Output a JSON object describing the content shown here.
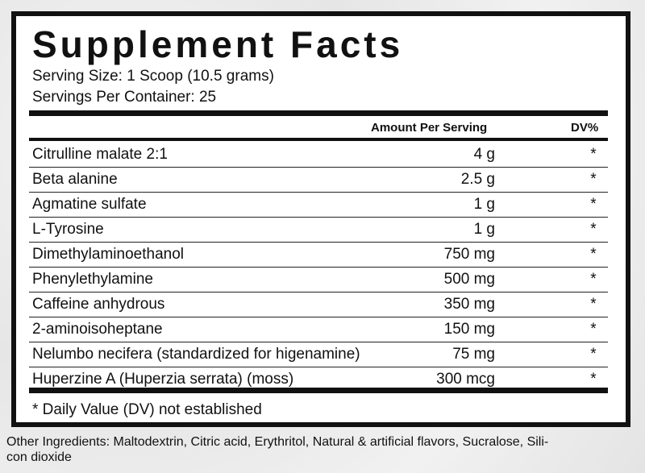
{
  "header": {
    "title": "Supplement Facts"
  },
  "serving": {
    "size": "Serving Size: 1 Scoop (10.5 grams)",
    "per_container": "Servings Per Container: 25"
  },
  "table": {
    "columns": [
      "Amount Per Serving",
      "DV%"
    ],
    "rows": [
      [
        "Citrulline malate 2:1",
        "4 g",
        "*"
      ],
      [
        "Beta alanine",
        "2.5 g",
        "*"
      ],
      [
        "Agmatine sulfate",
        "1 g",
        "*"
      ],
      [
        "L-Tyrosine",
        "1 g",
        "*"
      ],
      [
        "Dimethylaminoethanol",
        "750 mg",
        "*"
      ],
      [
        "Phenylethylamine",
        "500 mg",
        "*"
      ],
      [
        "Caffeine anhydrous",
        "350 mg",
        "*"
      ],
      [
        "2-aminoisoheptane",
        "150 mg",
        "*"
      ],
      [
        "Nelumbo necifera (standardized for higenamine)",
        "75 mg",
        "*"
      ],
      [
        "Huperzine A (Huperzia serrata) (moss)",
        "300 mcg",
        "*"
      ]
    ]
  },
  "footnote": "* Daily Value (DV) not established",
  "other_ingredients": [
    "Other Ingredients: Maltodextrin, Citric acid, Erythritol, Natural & artificial flavors, Sucralose, Sili-",
    "con dioxide"
  ]
}
